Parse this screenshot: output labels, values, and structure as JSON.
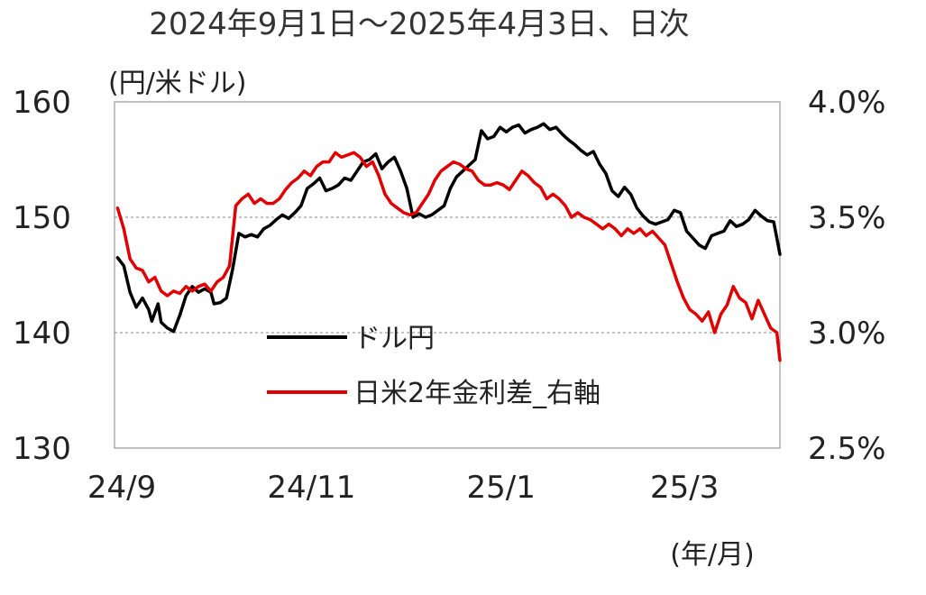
{
  "chart_data": {
    "type": "line",
    "title": "2024年9月1日～2025年4月3日、日次",
    "left_unit": "(円/米ドル)",
    "x_unit": "(年/月)",
    "x_tick_labels": [
      "24/9",
      "24/11",
      "25/1",
      "25/3"
    ],
    "x_range": [
      "2024-09-01",
      "2025-04-03"
    ],
    "y_left": {
      "range": [
        130,
        160
      ],
      "ticks": [
        "130",
        "140",
        "150",
        "160"
      ]
    },
    "y_right": {
      "range": [
        2.5,
        4.0
      ],
      "ticks": [
        "2.5%",
        "3.0%",
        "3.5%",
        "4.0%"
      ]
    },
    "gridlines": [
      140,
      150
    ],
    "legend_position": "center-left",
    "series": [
      {
        "name": "ドル円",
        "axis": "left",
        "color": "#000000",
        "points": [
          [
            "2024-09-02",
            146.5
          ],
          [
            "2024-09-04",
            145.8
          ],
          [
            "2024-09-06",
            143.5
          ],
          [
            "2024-09-08",
            142.2
          ],
          [
            "2024-09-10",
            143.0
          ],
          [
            "2024-09-12",
            142.0
          ],
          [
            "2024-09-13",
            141.0
          ],
          [
            "2024-09-15",
            142.5
          ],
          [
            "2024-09-16",
            140.9
          ],
          [
            "2024-09-18",
            140.4
          ],
          [
            "2024-09-20",
            140.1
          ],
          [
            "2024-09-22",
            141.5
          ],
          [
            "2024-09-24",
            143.2
          ],
          [
            "2024-09-26",
            144.0
          ],
          [
            "2024-09-28",
            143.5
          ],
          [
            "2024-09-30",
            143.8
          ],
          [
            "2024-10-02",
            143.5
          ],
          [
            "2024-10-03",
            142.5
          ],
          [
            "2024-10-05",
            142.6
          ],
          [
            "2024-10-07",
            143.0
          ],
          [
            "2024-10-09",
            145.5
          ],
          [
            "2024-10-11",
            148.6
          ],
          [
            "2024-10-13",
            148.3
          ],
          [
            "2024-10-15",
            148.5
          ],
          [
            "2024-10-17",
            148.3
          ],
          [
            "2024-10-19",
            149.0
          ],
          [
            "2024-10-21",
            149.3
          ],
          [
            "2024-10-23",
            149.8
          ],
          [
            "2024-10-25",
            150.2
          ],
          [
            "2024-10-27",
            149.9
          ],
          [
            "2024-10-29",
            150.4
          ],
          [
            "2024-10-31",
            151.0
          ],
          [
            "2024-11-02",
            152.5
          ],
          [
            "2024-11-04",
            152.9
          ],
          [
            "2024-11-06",
            153.4
          ],
          [
            "2024-11-08",
            152.3
          ],
          [
            "2024-11-10",
            152.5
          ],
          [
            "2024-11-12",
            152.8
          ],
          [
            "2024-11-14",
            153.4
          ],
          [
            "2024-11-16",
            153.2
          ],
          [
            "2024-11-18",
            154.0
          ],
          [
            "2024-11-20",
            154.8
          ],
          [
            "2024-11-22",
            155.0
          ],
          [
            "2024-11-24",
            155.5
          ],
          [
            "2024-11-26",
            154.2
          ],
          [
            "2024-11-28",
            154.8
          ],
          [
            "2024-11-30",
            155.2
          ],
          [
            "2024-12-02",
            154.0
          ],
          [
            "2024-12-04",
            152.5
          ],
          [
            "2024-12-06",
            150.0
          ],
          [
            "2024-12-08",
            150.3
          ],
          [
            "2024-12-10",
            150.0
          ],
          [
            "2024-12-12",
            150.2
          ],
          [
            "2024-12-14",
            150.6
          ],
          [
            "2024-12-16",
            151.0
          ],
          [
            "2024-12-18",
            152.5
          ],
          [
            "2024-12-20",
            153.5
          ],
          [
            "2024-12-22",
            154.0
          ],
          [
            "2024-12-24",
            154.5
          ],
          [
            "2024-12-26",
            155.0
          ],
          [
            "2024-12-28",
            157.5
          ],
          [
            "2024-12-30",
            156.8
          ],
          [
            "2025-01-01",
            157.0
          ],
          [
            "2025-01-03",
            157.8
          ],
          [
            "2025-01-05",
            157.4
          ],
          [
            "2025-01-07",
            157.8
          ],
          [
            "2025-01-09",
            158.0
          ],
          [
            "2025-01-11",
            157.3
          ],
          [
            "2025-01-13",
            157.6
          ],
          [
            "2025-01-15",
            157.8
          ],
          [
            "2025-01-17",
            158.1
          ],
          [
            "2025-01-19",
            157.6
          ],
          [
            "2025-01-21",
            157.8
          ],
          [
            "2025-01-23",
            157.2
          ],
          [
            "2025-01-25",
            156.7
          ],
          [
            "2025-01-27",
            156.3
          ],
          [
            "2025-01-29",
            155.8
          ],
          [
            "2025-01-31",
            155.4
          ],
          [
            "2025-02-02",
            155.7
          ],
          [
            "2025-02-04",
            154.6
          ],
          [
            "2025-02-06",
            153.8
          ],
          [
            "2025-02-08",
            152.3
          ],
          [
            "2025-02-10",
            151.8
          ],
          [
            "2025-02-12",
            152.6
          ],
          [
            "2025-02-14",
            152.0
          ],
          [
            "2025-02-16",
            150.8
          ],
          [
            "2025-02-18",
            150.1
          ],
          [
            "2025-02-20",
            149.6
          ],
          [
            "2025-02-22",
            149.4
          ],
          [
            "2025-02-24",
            149.6
          ],
          [
            "2025-02-26",
            149.8
          ],
          [
            "2025-02-28",
            150.6
          ],
          [
            "2025-03-02",
            150.4
          ],
          [
            "2025-03-04",
            148.8
          ],
          [
            "2025-03-06",
            148.2
          ],
          [
            "2025-03-08",
            147.6
          ],
          [
            "2025-03-10",
            147.3
          ],
          [
            "2025-03-12",
            148.4
          ],
          [
            "2025-03-14",
            148.6
          ],
          [
            "2025-03-16",
            148.8
          ],
          [
            "2025-03-18",
            149.7
          ],
          [
            "2025-03-20",
            149.2
          ],
          [
            "2025-03-22",
            149.4
          ],
          [
            "2025-03-24",
            149.8
          ],
          [
            "2025-03-26",
            150.6
          ],
          [
            "2025-03-28",
            150.1
          ],
          [
            "2025-03-30",
            149.7
          ],
          [
            "2025-04-01",
            149.6
          ],
          [
            "2025-04-03",
            146.8
          ]
        ]
      },
      {
        "name": "日米2年金利差_右軸",
        "axis": "right",
        "color": "#e00000",
        "points": [
          [
            "2024-09-02",
            3.54
          ],
          [
            "2024-09-04",
            3.45
          ],
          [
            "2024-09-06",
            3.32
          ],
          [
            "2024-09-08",
            3.28
          ],
          [
            "2024-09-10",
            3.27
          ],
          [
            "2024-09-12",
            3.22
          ],
          [
            "2024-09-14",
            3.24
          ],
          [
            "2024-09-16",
            3.18
          ],
          [
            "2024-09-18",
            3.16
          ],
          [
            "2024-09-20",
            3.18
          ],
          [
            "2024-09-22",
            3.17
          ],
          [
            "2024-09-24",
            3.2
          ],
          [
            "2024-09-26",
            3.18
          ],
          [
            "2024-09-28",
            3.2
          ],
          [
            "2024-09-30",
            3.21
          ],
          [
            "2024-10-02",
            3.18
          ],
          [
            "2024-10-04",
            3.22
          ],
          [
            "2024-10-06",
            3.24
          ],
          [
            "2024-10-08",
            3.29
          ],
          [
            "2024-10-10",
            3.55
          ],
          [
            "2024-10-12",
            3.58
          ],
          [
            "2024-10-14",
            3.6
          ],
          [
            "2024-10-16",
            3.56
          ],
          [
            "2024-10-18",
            3.58
          ],
          [
            "2024-10-20",
            3.56
          ],
          [
            "2024-10-22",
            3.56
          ],
          [
            "2024-10-24",
            3.58
          ],
          [
            "2024-10-26",
            3.62
          ],
          [
            "2024-10-28",
            3.65
          ],
          [
            "2024-10-30",
            3.67
          ],
          [
            "2024-11-01",
            3.7
          ],
          [
            "2024-11-03",
            3.68
          ],
          [
            "2024-11-05",
            3.72
          ],
          [
            "2024-11-07",
            3.74
          ],
          [
            "2024-11-09",
            3.74
          ],
          [
            "2024-11-11",
            3.78
          ],
          [
            "2024-11-13",
            3.76
          ],
          [
            "2024-11-15",
            3.77
          ],
          [
            "2024-11-17",
            3.78
          ],
          [
            "2024-11-19",
            3.76
          ],
          [
            "2024-11-21",
            3.72
          ],
          [
            "2024-11-23",
            3.74
          ],
          [
            "2024-11-25",
            3.68
          ],
          [
            "2024-11-27",
            3.6
          ],
          [
            "2024-11-29",
            3.56
          ],
          [
            "2024-12-01",
            3.54
          ],
          [
            "2024-12-03",
            3.52
          ],
          [
            "2024-12-05",
            3.51
          ],
          [
            "2024-12-07",
            3.52
          ],
          [
            "2024-12-09",
            3.56
          ],
          [
            "2024-12-11",
            3.6
          ],
          [
            "2024-12-13",
            3.66
          ],
          [
            "2024-12-15",
            3.7
          ],
          [
            "2024-12-17",
            3.72
          ],
          [
            "2024-12-19",
            3.74
          ],
          [
            "2024-12-21",
            3.73
          ],
          [
            "2024-12-23",
            3.71
          ],
          [
            "2024-12-25",
            3.7
          ],
          [
            "2024-12-27",
            3.66
          ],
          [
            "2024-12-29",
            3.64
          ],
          [
            "2024-12-31",
            3.64
          ],
          [
            "2025-01-02",
            3.65
          ],
          [
            "2025-01-04",
            3.64
          ],
          [
            "2025-01-06",
            3.62
          ],
          [
            "2025-01-08",
            3.66
          ],
          [
            "2025-01-10",
            3.7
          ],
          [
            "2025-01-12",
            3.68
          ],
          [
            "2025-01-14",
            3.65
          ],
          [
            "2025-01-16",
            3.63
          ],
          [
            "2025-01-18",
            3.58
          ],
          [
            "2025-01-20",
            3.6
          ],
          [
            "2025-01-22",
            3.58
          ],
          [
            "2025-01-24",
            3.55
          ],
          [
            "2025-01-26",
            3.5
          ],
          [
            "2025-01-28",
            3.52
          ],
          [
            "2025-01-30",
            3.5
          ],
          [
            "2025-02-01",
            3.49
          ],
          [
            "2025-02-03",
            3.47
          ],
          [
            "2025-02-05",
            3.45
          ],
          [
            "2025-02-07",
            3.47
          ],
          [
            "2025-02-09",
            3.45
          ],
          [
            "2025-02-11",
            3.42
          ],
          [
            "2025-02-13",
            3.45
          ],
          [
            "2025-02-15",
            3.43
          ],
          [
            "2025-02-17",
            3.45
          ],
          [
            "2025-02-19",
            3.42
          ],
          [
            "2025-02-21",
            3.44
          ],
          [
            "2025-02-23",
            3.41
          ],
          [
            "2025-02-25",
            3.38
          ],
          [
            "2025-02-27",
            3.3
          ],
          [
            "2025-03-01",
            3.22
          ],
          [
            "2025-03-03",
            3.15
          ],
          [
            "2025-03-05",
            3.1
          ],
          [
            "2025-03-07",
            3.08
          ],
          [
            "2025-03-09",
            3.05
          ],
          [
            "2025-03-11",
            3.09
          ],
          [
            "2025-03-13",
            3.0
          ],
          [
            "2025-03-15",
            3.08
          ],
          [
            "2025-03-17",
            3.12
          ],
          [
            "2025-03-19",
            3.2
          ],
          [
            "2025-03-21",
            3.15
          ],
          [
            "2025-03-23",
            3.13
          ],
          [
            "2025-03-25",
            3.06
          ],
          [
            "2025-03-27",
            3.14
          ],
          [
            "2025-03-29",
            3.08
          ],
          [
            "2025-03-31",
            3.02
          ],
          [
            "2025-04-02",
            3.0
          ],
          [
            "2025-04-03",
            2.88
          ]
        ]
      }
    ]
  }
}
